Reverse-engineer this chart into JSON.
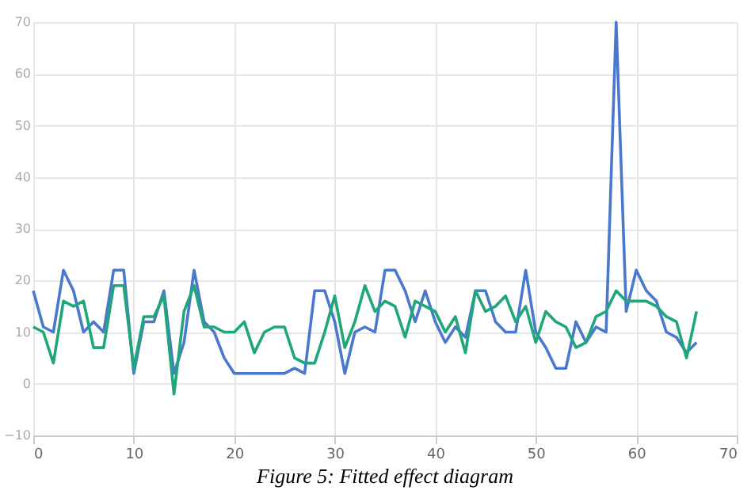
{
  "chart_data": {
    "type": "line",
    "annotations": [
      "Figure 5: Fitted effect diagram"
    ],
    "x": [
      0,
      1,
      2,
      3,
      4,
      5,
      6,
      7,
      8,
      9,
      10,
      11,
      12,
      13,
      14,
      15,
      16,
      17,
      18,
      19,
      20,
      21,
      22,
      23,
      24,
      25,
      26,
      27,
      28,
      29,
      30,
      31,
      32,
      33,
      34,
      35,
      36,
      37,
      38,
      39,
      40,
      41,
      42,
      43,
      44,
      45,
      46,
      47,
      48,
      49,
      50,
      51,
      52,
      53,
      54,
      55,
      56,
      57,
      58,
      59,
      60,
      61,
      62,
      63,
      64,
      65,
      66
    ],
    "series": [
      {
        "color": "#4a78cc",
        "values": [
          18,
          11,
          10,
          22,
          18,
          10,
          12,
          10,
          22,
          22,
          2,
          12,
          12,
          18,
          2,
          8,
          22,
          12,
          10,
          5,
          2,
          2,
          2,
          2,
          2,
          2,
          3,
          2,
          18,
          18,
          12,
          2,
          10,
          11,
          10,
          22,
          22,
          18,
          12,
          18,
          12,
          8,
          11,
          9,
          18,
          18,
          12,
          10,
          10,
          22,
          10,
          7,
          3,
          3,
          12,
          8,
          11,
          10,
          70,
          14,
          22,
          18,
          16,
          10,
          9,
          6,
          8
        ]
      },
      {
        "color": "#1fa67a",
        "values": [
          11,
          10,
          4,
          16,
          15,
          16,
          7,
          7,
          19,
          19,
          3,
          13,
          13,
          17,
          -2,
          14,
          19,
          11,
          11,
          10,
          10,
          12,
          6,
          10,
          11,
          11,
          5,
          4,
          4,
          10,
          17,
          7,
          12,
          19,
          14,
          16,
          15,
          9,
          16,
          15,
          14,
          10,
          13,
          6,
          18,
          14,
          15,
          17,
          12,
          15,
          8,
          14,
          12,
          11,
          7,
          8,
          13,
          14,
          18,
          16,
          16,
          16,
          15,
          13,
          12,
          5,
          14
        ]
      }
    ],
    "xlim": [
      0,
      70
    ],
    "xticks": [
      0,
      10,
      20,
      30,
      40,
      50,
      60,
      70
    ],
    "ylim": [
      -10,
      70
    ],
    "yticks": [
      -10,
      0,
      10,
      20,
      30,
      40,
      50,
      60,
      70
    ],
    "grid": true,
    "marker": "none",
    "line_style": "solid"
  }
}
